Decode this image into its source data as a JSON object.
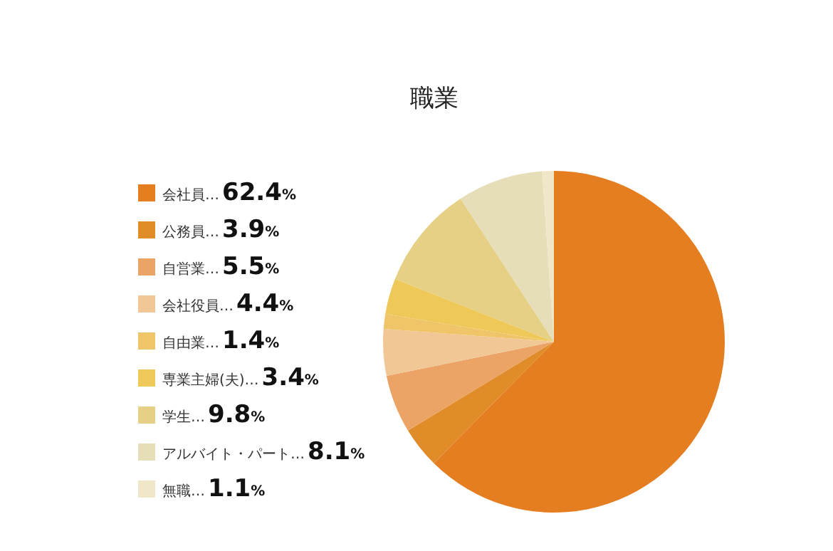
{
  "chart_data": {
    "type": "pie",
    "title": "職業",
    "categories": [
      "会社員…",
      "公務員…",
      "自営業…",
      "会社役員…",
      "自由業…",
      "専業主婦(夫)…",
      "学生…",
      "アルバイト・パート…",
      "無職…"
    ],
    "values": [
      62.4,
      3.9,
      5.5,
      4.4,
      1.4,
      3.4,
      9.8,
      8.1,
      1.1
    ],
    "value_labels": [
      "62.4%",
      "3.9%",
      "5.5%",
      "4.4%",
      "1.4%",
      "3.4%",
      "9.8%",
      "8.1%",
      "1.1%"
    ],
    "colors": [
      "#e47e21",
      "#e08c28",
      "#eca466",
      "#f2c796",
      "#f0c56a",
      "#eec95a",
      "#e6d085",
      "#e6ddb9",
      "#f0e6c8"
    ],
    "legend": "left"
  }
}
